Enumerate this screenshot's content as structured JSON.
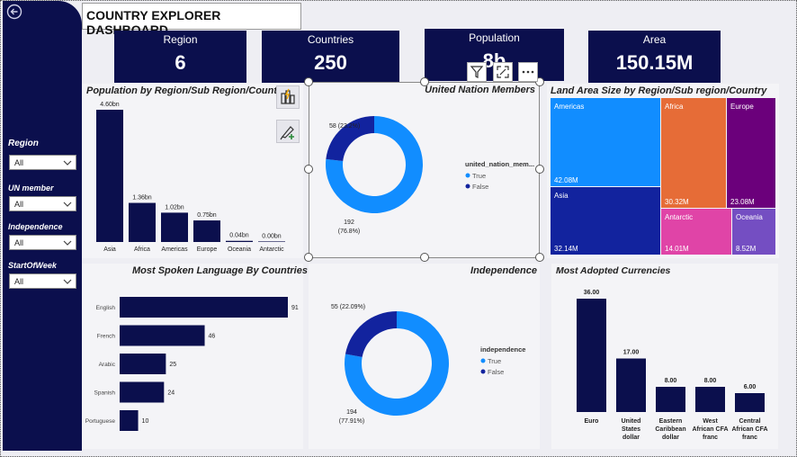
{
  "dashboard_title": "COUNTRY EXPLORER DASHBOARD",
  "kpis": [
    {
      "label": "Region",
      "value": "6"
    },
    {
      "label": "Countries",
      "value": "250"
    },
    {
      "label": "Population",
      "value": "8b"
    },
    {
      "label": "Area",
      "value": "150.15M"
    }
  ],
  "slicers": [
    {
      "label": "Region",
      "value": "All"
    },
    {
      "label": "UN member",
      "value": "All"
    },
    {
      "label": "Independence",
      "value": "All"
    },
    {
      "label": "StartOfWeek",
      "value": "All"
    }
  ],
  "visual_header_icons": [
    "filter-icon",
    "focus-mode-icon",
    "more-options-icon"
  ],
  "visual_tools": [
    "build-visual-icon",
    "format-visual-icon"
  ],
  "chart_data": [
    {
      "id": "population",
      "type": "bar",
      "title": "Population by Region/Sub Region/Country",
      "categories": [
        "Asia",
        "Africa",
        "Americas",
        "Europe",
        "Oceania",
        "Antarctic"
      ],
      "values": [
        4.6,
        1.36,
        1.02,
        0.75,
        0.04,
        0.0
      ],
      "labels": [
        "4.60bn",
        "1.36bn",
        "1.02bn",
        "0.75bn",
        "0.04bn",
        "0.00bn"
      ],
      "unit": "bn",
      "color": "#0b0f4d"
    },
    {
      "id": "un_members",
      "type": "pie",
      "title": "United Nation Members",
      "legend_title": "united_nation_mem...",
      "slices": [
        {
          "name": "True",
          "value": 192,
          "label": "192 (76.8%)",
          "color": "#118dff"
        },
        {
          "name": "False",
          "value": 58,
          "label": "58 (23.2%)",
          "color": "#12239e"
        }
      ]
    },
    {
      "id": "land_area",
      "type": "heatmap",
      "title": "Land Area Size by Region/Sub region/Country",
      "tiles": [
        {
          "name": "Americas",
          "value": "42.08M",
          "color": "#118dff"
        },
        {
          "name": "Asia",
          "value": "32.14M",
          "color": "#12239e"
        },
        {
          "name": "Africa",
          "value": "30.32M",
          "color": "#e66c37"
        },
        {
          "name": "Europe",
          "value": "23.08M",
          "color": "#6b007b"
        },
        {
          "name": "Antarctic",
          "value": "14.01M",
          "color": "#e044a7"
        },
        {
          "name": "Oceania",
          "value": "8.52M",
          "color": "#744ec2"
        }
      ]
    },
    {
      "id": "languages",
      "type": "bar",
      "orientation": "horizontal",
      "title": "Most Spoken Language By Countries",
      "categories": [
        "English",
        "French",
        "Arabic",
        "Spanish",
        "Portuguese"
      ],
      "values": [
        91,
        46,
        25,
        24,
        10
      ],
      "color": "#0b0f4d"
    },
    {
      "id": "independence",
      "type": "pie",
      "title": "Independence",
      "legend_title": "independence",
      "slices": [
        {
          "name": "True",
          "value": 194,
          "label": "194 (77.91%)",
          "color": "#118dff"
        },
        {
          "name": "False",
          "value": 55,
          "label": "55 (22.09%)",
          "color": "#12239e"
        }
      ]
    },
    {
      "id": "currencies",
      "type": "bar",
      "title": "Most Adopted Currencies",
      "categories": [
        [
          "Euro"
        ],
        [
          "United",
          "States",
          "dollar"
        ],
        [
          "Eastern",
          "Caribbean",
          "dollar"
        ],
        [
          "West",
          "African CFA",
          "franc"
        ],
        [
          "Central",
          "African CFA",
          "franc"
        ]
      ],
      "values": [
        36,
        17,
        8,
        8,
        6
      ],
      "labels": [
        "36.00",
        "17.00",
        "8.00",
        "8.00",
        "6.00"
      ],
      "color": "#0b0f4d"
    }
  ]
}
